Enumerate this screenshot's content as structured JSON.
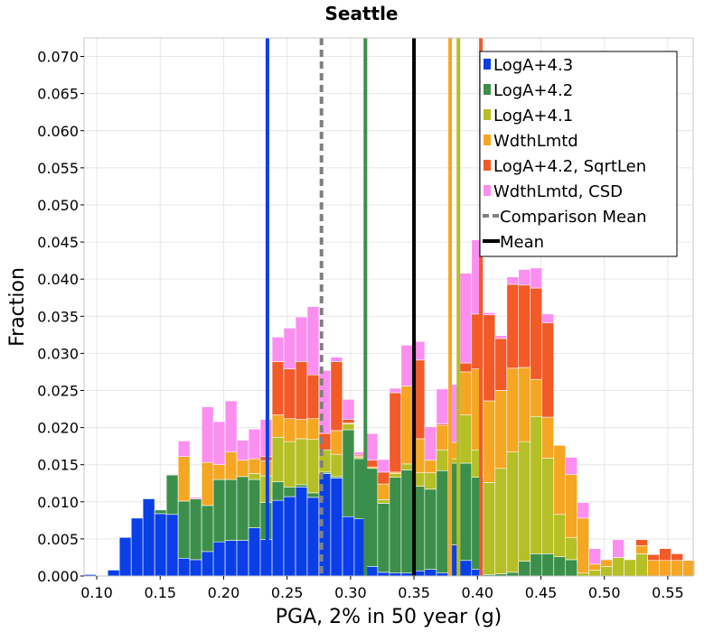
{
  "chart_data": {
    "type": "bar",
    "stacked": true,
    "title": "Seattle",
    "xlabel": "PGA, 2% in 50 year (g)",
    "ylabel": "Fraction",
    "xlim": [
      0.09,
      0.57
    ],
    "ylim": [
      0.0,
      0.0725
    ],
    "grid": true,
    "legend_position": "top-right",
    "x_ticks": [
      "0.10",
      "0.15",
      "0.20",
      "0.25",
      "0.30",
      "0.35",
      "0.40",
      "0.45",
      "0.50",
      "0.55"
    ],
    "y_ticks": [
      "0.000",
      "0.005",
      "0.010",
      "0.015",
      "0.020",
      "0.025",
      "0.030",
      "0.035",
      "0.040",
      "0.045",
      "0.050",
      "0.055",
      "0.060",
      "0.065",
      "0.070"
    ],
    "bin_width": 0.00925,
    "bin_centers": [
      0.0948,
      0.104,
      0.1133,
      0.1225,
      0.1318,
      0.141,
      0.1503,
      0.1595,
      0.1688,
      0.178,
      0.1873,
      0.1965,
      0.2058,
      0.215,
      0.2243,
      0.2335,
      0.2428,
      0.252,
      0.2613,
      0.2705,
      0.2798,
      0.289,
      0.2983,
      0.3075,
      0.3168,
      0.326,
      0.3353,
      0.3445,
      0.3538,
      0.363,
      0.3723,
      0.3815,
      0.3908,
      0.4,
      0.4093,
      0.4185,
      0.4278,
      0.437,
      0.4463,
      0.4555,
      0.4648,
      0.474,
      0.4833,
      0.4925,
      0.5018,
      0.511,
      0.5203,
      0.5295,
      0.5388,
      0.548,
      0.5573,
      0.5665
    ],
    "series": [
      {
        "name": "LogA+4.3",
        "color": "#0a3fe8",
        "values": [
          0.0002,
          0,
          0.0008,
          0.0052,
          0.0078,
          0.0104,
          0.0084,
          0.0083,
          0.0024,
          0.0022,
          0.0033,
          0.0046,
          0.0048,
          0.0048,
          0.0065,
          0.0049,
          0.0102,
          0.0107,
          0.012,
          0.0106,
          0.0138,
          0.0132,
          0.008,
          0.0077,
          0.0013,
          0.0005,
          0.0004,
          0.0004,
          0.0007,
          0.0009,
          0.0004,
          0.0042,
          0.0021,
          0.0009,
          0,
          0,
          0,
          0,
          0,
          0,
          0,
          0,
          0,
          0,
          0,
          0,
          0,
          0,
          0,
          0,
          0,
          0
        ]
      },
      {
        "name": "LogA+4.2",
        "color": "#3b8f4a",
        "values": [
          0,
          0,
          0,
          0,
          0,
          0.0001,
          0.0005,
          0.0053,
          0.0077,
          0.0082,
          0.0062,
          0.0084,
          0.0082,
          0.0086,
          0.0065,
          0.005,
          0.0025,
          0.0013,
          0.0003,
          0.0006,
          0.0002,
          0.0002,
          0.0117,
          0.0081,
          0.0132,
          0.0093,
          0.0129,
          0.0139,
          0.0114,
          0.0108,
          0.0138,
          0.011,
          0.0131,
          0.0124,
          0.0002,
          0.0003,
          0.0005,
          0.002,
          0.003,
          0.003,
          0.0026,
          0.0022,
          0,
          0,
          0,
          0,
          0,
          0,
          0,
          0,
          0,
          0
        ]
      },
      {
        "name": "LogA+4.1",
        "color": "#b5bf26",
        "values": [
          0,
          0,
          0,
          0,
          0,
          0,
          0,
          0,
          0,
          0,
          0,
          0,
          0,
          0,
          0.0008,
          0.0036,
          0.006,
          0.0061,
          0.0062,
          0.0072,
          0.003,
          0.003,
          0.0008,
          0.0002,
          0,
          0.0005,
          0.0005,
          0.0008,
          0.0018,
          0.0022,
          0.0028,
          0.0006,
          0.0065,
          0.0037,
          0.0124,
          0.0142,
          0.0162,
          0.0161,
          0.0185,
          0.0129,
          0.0057,
          0.003,
          0.0004,
          0.0008,
          0.0013,
          0.0025,
          0.0022,
          0.003,
          0,
          0,
          0,
          0
        ]
      },
      {
        "name": "WdthLmtd",
        "color": "#f5a623",
        "values": [
          0,
          0,
          0,
          0,
          0,
          0,
          0,
          0,
          0.006,
          0,
          0.0058,
          0.002,
          0.0037,
          0.0022,
          0.002,
          0.002,
          0.003,
          0.0031,
          0.0026,
          0.0028,
          0,
          0.0032,
          0.0001,
          0.0001,
          0.0002,
          0.0021,
          0.0002,
          0.0105,
          0.0046,
          0.0017,
          0.0033,
          0.0022,
          0.0058,
          0.0109,
          0.011,
          0.0105,
          0.0113,
          0.01,
          0.005,
          0.0055,
          0.0093,
          0.0085,
          0.0074,
          0.0008,
          0.0009,
          0,
          0,
          0.0011,
          0.0021,
          0.0021,
          0.0021,
          0.0021
        ]
      },
      {
        "name": "LogA+4.2, SqrtLen",
        "color": "#f25a28",
        "values": [
          0,
          0,
          0,
          0,
          0,
          0,
          0,
          0,
          0,
          0,
          0,
          0,
          0,
          0,
          0,
          0.0006,
          0.0072,
          0.0067,
          0.0078,
          0.0059,
          0.0022,
          0.0093,
          0.0005,
          0.0002,
          0.0009,
          0.0016,
          0.0107,
          0,
          0.0106,
          0,
          0.0002,
          0,
          0.0012,
          0.0074,
          0.0116,
          0.007,
          0.0113,
          0.0111,
          0.0123,
          0.0127,
          0,
          0,
          0,
          0,
          0,
          0,
          0,
          0.0008,
          0.0008,
          0.0016,
          0.0009,
          0
        ]
      },
      {
        "name": "WdthLmtd, CSD",
        "color": "#fb8ff0",
        "values": [
          0,
          0,
          0,
          0,
          0,
          0,
          0,
          0.0001,
          0.0021,
          0.0002,
          0.0075,
          0.0058,
          0.0069,
          0.0027,
          0.004,
          0.005,
          0.0033,
          0.0055,
          0.006,
          0.0092,
          0.0085,
          0.0006,
          0.0027,
          0.0004,
          0.0036,
          0.0017,
          0.0006,
          0.0055,
          0.0025,
          0.0045,
          0.0047,
          0.0078,
          0.0121,
          0.01,
          0.0003,
          0.0004,
          0.001,
          0.0021,
          0.0027,
          0.0012,
          0,
          0.0023,
          0.0021,
          0.0021,
          0.0001,
          0.0024,
          0,
          0,
          0,
          0,
          0,
          0
        ]
      }
    ],
    "vlines": [
      {
        "name": "LogA+4.3",
        "x": 0.2345,
        "color": "#0a3fe8",
        "style": "solid"
      },
      {
        "name": "LogA+4.2",
        "x": 0.3117,
        "color": "#3b8f4a",
        "style": "solid"
      },
      {
        "name": "LogA+4.1",
        "x": 0.385,
        "color": "#b5bf26",
        "style": "solid"
      },
      {
        "name": "WdthLmtd",
        "x": 0.3785,
        "color": "#f5a623",
        "style": "solid"
      },
      {
        "name": "LogA+4.2, SqrtLen",
        "x": 0.4027,
        "color": "#f25a28",
        "style": "solid"
      },
      {
        "name": "Comparison Mean",
        "x": 0.2771,
        "color": "#808080",
        "style": "dashed"
      },
      {
        "name": "Mean",
        "x": 0.35,
        "color": "#000000",
        "style": "solid"
      }
    ],
    "legend": [
      {
        "label": "LogA+4.3",
        "color": "#0a3fe8",
        "kind": "box"
      },
      {
        "label": "LogA+4.2",
        "color": "#3b8f4a",
        "kind": "box"
      },
      {
        "label": "LogA+4.1",
        "color": "#b5bf26",
        "kind": "box"
      },
      {
        "label": "WdthLmtd",
        "color": "#f5a623",
        "kind": "box"
      },
      {
        "label": "LogA+4.2, SqrtLen",
        "color": "#f25a28",
        "kind": "box"
      },
      {
        "label": "WdthLmtd, CSD",
        "color": "#fb8ff0",
        "kind": "box"
      },
      {
        "label": "Comparison Mean",
        "color": "#808080",
        "kind": "dashed"
      },
      {
        "label": "Mean",
        "color": "#000000",
        "kind": "solid"
      }
    ]
  }
}
